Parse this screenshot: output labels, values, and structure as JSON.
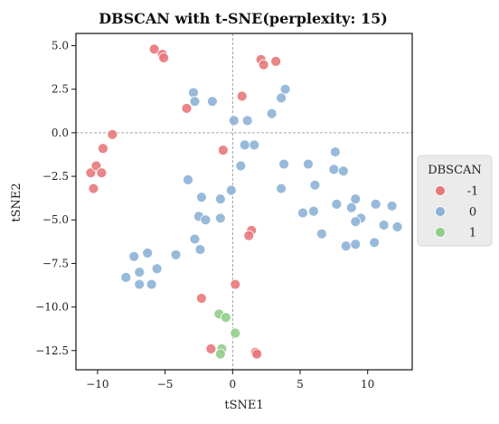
{
  "chart_data": {
    "type": "scatter",
    "title": "DBSCAN with t-SNE(perplexity: 15)",
    "xlabel": "tSNE1",
    "ylabel": "tSNE2",
    "xlim": [
      -11.6,
      13.3
    ],
    "ylim": [
      -13.6,
      5.7
    ],
    "xticks": [
      -10,
      -5,
      0,
      5,
      10
    ],
    "xtick_labels": [
      "−10",
      "−5",
      "0",
      "5",
      "10"
    ],
    "yticks": [
      5.0,
      2.5,
      0.0,
      -2.5,
      -5.0,
      -7.5,
      -10.0,
      -12.5
    ],
    "ytick_labels": [
      "5.0",
      "2.5",
      "0.0",
      "−2.5",
      "−5.0",
      "−7.5",
      "−10.0",
      "−12.5"
    ],
    "reference_lines": {
      "x": 0,
      "y": 0,
      "style": "dashed"
    },
    "grid": false,
    "legend": {
      "title": "DBSCAN",
      "placement": "right-outside",
      "entries": [
        {
          "label": "-1",
          "color": "#e8787b"
        },
        {
          "label": "0",
          "color": "#8db3d6"
        },
        {
          "label": "1",
          "color": "#92cd8b"
        }
      ]
    },
    "series": [
      {
        "name": "-1",
        "color": "#e8787b",
        "points": [
          [
            -5.8,
            4.8
          ],
          [
            -5.2,
            4.5
          ],
          [
            -5.1,
            4.3
          ],
          [
            2.1,
            4.2
          ],
          [
            2.3,
            3.9
          ],
          [
            3.2,
            4.1
          ],
          [
            -3.4,
            1.4
          ],
          [
            0.7,
            2.1
          ],
          [
            -0.7,
            -1.0
          ],
          [
            -8.9,
            -0.1
          ],
          [
            -9.6,
            -0.9
          ],
          [
            -10.5,
            -2.3
          ],
          [
            -10.1,
            -1.9
          ],
          [
            -9.7,
            -2.3
          ],
          [
            -10.3,
            -3.2
          ],
          [
            1.4,
            -5.6
          ],
          [
            1.2,
            -5.9
          ],
          [
            0.2,
            -8.7
          ],
          [
            -2.3,
            -9.5
          ],
          [
            -1.6,
            -12.4
          ],
          [
            1.7,
            -12.6
          ],
          [
            1.8,
            -12.7
          ]
        ]
      },
      {
        "name": "0",
        "color": "#8db3d6",
        "points": [
          [
            -2.9,
            2.3
          ],
          [
            -2.8,
            1.8
          ],
          [
            -1.5,
            1.8
          ],
          [
            3.9,
            2.5
          ],
          [
            3.6,
            2.0
          ],
          [
            2.9,
            1.1
          ],
          [
            0.1,
            0.7
          ],
          [
            1.1,
            0.7
          ],
          [
            1.6,
            -0.7
          ],
          [
            0.9,
            -0.7
          ],
          [
            0.6,
            -1.9
          ],
          [
            3.8,
            -1.8
          ],
          [
            5.6,
            -1.8
          ],
          [
            7.6,
            -1.1
          ],
          [
            7.5,
            -2.1
          ],
          [
            8.2,
            -2.2
          ],
          [
            6.1,
            -3.0
          ],
          [
            -3.3,
            -2.7
          ],
          [
            -0.1,
            -3.3
          ],
          [
            3.6,
            -3.2
          ],
          [
            -2.3,
            -3.7
          ],
          [
            -0.9,
            -3.8
          ],
          [
            7.7,
            -4.1
          ],
          [
            8.8,
            -4.3
          ],
          [
            9.1,
            -3.8
          ],
          [
            10.6,
            -4.1
          ],
          [
            11.8,
            -4.2
          ],
          [
            6.0,
            -4.5
          ],
          [
            5.2,
            -4.6
          ],
          [
            9.5,
            -4.9
          ],
          [
            9.1,
            -5.1
          ],
          [
            11.2,
            -5.3
          ],
          [
            12.2,
            -5.4
          ],
          [
            -2.5,
            -4.8
          ],
          [
            -2.0,
            -5.0
          ],
          [
            -0.9,
            -4.9
          ],
          [
            -2.8,
            -6.1
          ],
          [
            -2.4,
            -6.7
          ],
          [
            6.6,
            -5.8
          ],
          [
            8.4,
            -6.5
          ],
          [
            9.1,
            -6.4
          ],
          [
            10.5,
            -6.3
          ],
          [
            -4.2,
            -7.0
          ],
          [
            -6.3,
            -6.9
          ],
          [
            -7.3,
            -7.1
          ],
          [
            -5.6,
            -7.8
          ],
          [
            -6.9,
            -8.0
          ],
          [
            -7.9,
            -8.3
          ],
          [
            -6.9,
            -8.7
          ],
          [
            -6.0,
            -8.7
          ]
        ]
      },
      {
        "name": "1",
        "color": "#92cd8b",
        "points": [
          [
            -1.0,
            -10.4
          ],
          [
            -0.5,
            -10.6
          ],
          [
            0.2,
            -11.5
          ],
          [
            -0.8,
            -12.4
          ],
          [
            -0.9,
            -12.7
          ]
        ]
      }
    ]
  }
}
